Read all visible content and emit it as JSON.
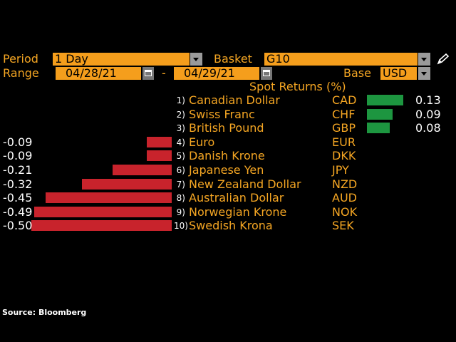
{
  "header": {
    "period_label": "Period",
    "period_value": "1 Day",
    "basket_label": "Basket",
    "basket_value": "G10",
    "range_label": "Range",
    "start_date": "04/28/21",
    "range_separator": "-",
    "end_date": "04/29/21",
    "base_label": "Base",
    "base_value": "USD"
  },
  "table_title": "Spot Returns (%)",
  "rows": [
    {
      "rank": "1)",
      "name": "Canadian Dollar",
      "code": "CAD",
      "value": "0.13"
    },
    {
      "rank": "2)",
      "name": "Swiss Franc",
      "code": "CHF",
      "value": "0.09"
    },
    {
      "rank": "3)",
      "name": "British Pound",
      "code": "GBP",
      "value": "0.08"
    },
    {
      "rank": "4)",
      "name": "Euro",
      "code": "EUR",
      "value": "-0.09"
    },
    {
      "rank": "5)",
      "name": "Danish Krone",
      "code": "DKK",
      "value": "-0.09"
    },
    {
      "rank": "6)",
      "name": "Japanese Yen",
      "code": "JPY",
      "value": "-0.21"
    },
    {
      "rank": "7)",
      "name": "New Zealand Dollar",
      "code": "NZD",
      "value": "-0.32"
    },
    {
      "rank": "8)",
      "name": "Australian Dollar",
      "code": "AUD",
      "value": "-0.45"
    },
    {
      "rank": "9)",
      "name": "Norwegian Krone",
      "code": "NOK",
      "value": "-0.49"
    },
    {
      "rank": "10)",
      "name": "Swedish Krona",
      "code": "SEK",
      "value": "-0.50"
    }
  ],
  "footer": {
    "source": "Source: Bloomberg"
  },
  "colors": {
    "accent": "#f5a623",
    "positive": "#1d9640",
    "negative": "#c8232c",
    "field": "#f59e1c"
  },
  "icons": {
    "dropdown": "chevron-down-icon",
    "calendar": "calendar-icon",
    "edit": "pencil-icon"
  }
}
